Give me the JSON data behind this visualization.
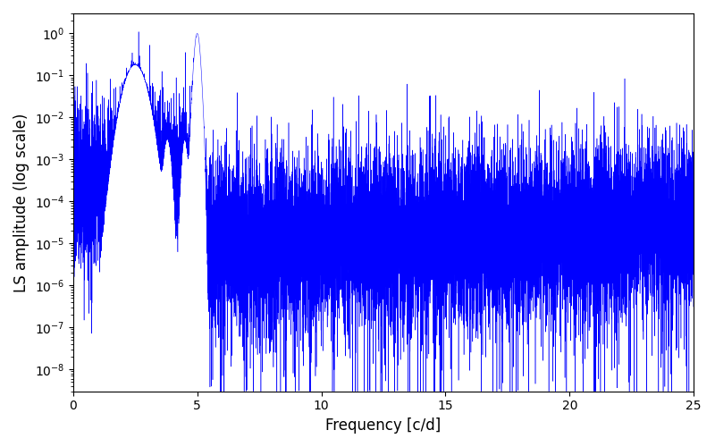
{
  "xlabel": "Frequency [c/d]",
  "ylabel": "LS amplitude (log scale)",
  "line_color": "#0000ff",
  "xlim": [
    0,
    25
  ],
  "ylim_low": 3e-09,
  "ylim_high": 3.0,
  "freq_max": 25,
  "n_points": 15000,
  "seed": 7,
  "figsize": [
    8.0,
    5.0
  ],
  "dpi": 100,
  "bg_color": "#ffffff",
  "peak1_freq": 2.5,
  "peak1_amp": 0.18,
  "peak2_freq": 5.0,
  "peak2_amp": 1.0,
  "linewidth": 0.35,
  "xlabel_fontsize": 12,
  "ylabel_fontsize": 12
}
